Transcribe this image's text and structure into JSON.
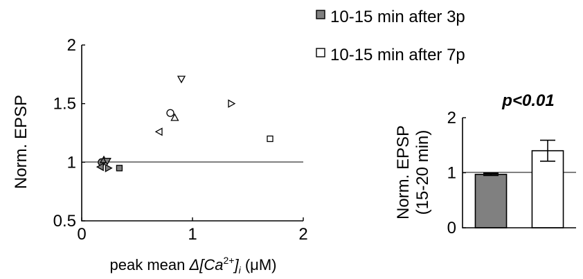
{
  "legend": {
    "items": [
      {
        "label": "10-15 min after 3p",
        "color": "#808080"
      },
      {
        "label": "10-15 min after 7p",
        "color": "#ffffff"
      }
    ]
  },
  "chart_data": [
    {
      "type": "scatter",
      "ylabel": "Norm. EPSP",
      "xlabel_parts": {
        "prefix": "peak mean ",
        "delta": "Δ",
        "main": "[Ca",
        "sup": "2+",
        "close": "]",
        "sub": "i",
        "unit": " (μM)"
      },
      "xlim": [
        0,
        2
      ],
      "ylim": [
        0.5,
        2
      ],
      "xticks": [
        0,
        1,
        2
      ],
      "xtick_labels": [
        "0",
        "1",
        "2"
      ],
      "yticks": [
        0.5,
        1,
        1.5,
        2
      ],
      "ytick_labels": [
        "0.5",
        "1",
        "1.5",
        "2"
      ],
      "reference_line_y": 1,
      "series": [
        {
          "color": "#808080",
          "points": [
            {
              "x": 0.18,
              "y": 1.0,
              "marker": "circle"
            },
            {
              "x": 0.2,
              "y": 1.02,
              "marker": "triangle-up"
            },
            {
              "x": 0.23,
              "y": 1.01,
              "marker": "triangle-down"
            },
            {
              "x": 0.17,
              "y": 0.96,
              "marker": "triangle-left"
            },
            {
              "x": 0.24,
              "y": 0.95,
              "marker": "triangle-right"
            },
            {
              "x": 0.34,
              "y": 0.95,
              "marker": "square"
            }
          ]
        },
        {
          "color": "#ffffff",
          "points": [
            {
              "x": 0.9,
              "y": 1.71,
              "marker": "triangle-down"
            },
            {
              "x": 1.35,
              "y": 1.5,
              "marker": "triangle-right"
            },
            {
              "x": 0.8,
              "y": 1.42,
              "marker": "circle"
            },
            {
              "x": 0.84,
              "y": 1.38,
              "marker": "triangle-up"
            },
            {
              "x": 0.7,
              "y": 1.26,
              "marker": "triangle-left"
            },
            {
              "x": 1.7,
              "y": 1.2,
              "marker": "square"
            }
          ]
        }
      ]
    },
    {
      "type": "bar",
      "title": "p<0.01",
      "ylabel_lines": [
        "Norm. EPSP",
        "(15-20 min)"
      ],
      "ylim": [
        0,
        2
      ],
      "yticks": [
        0,
        1,
        2
      ],
      "ytick_labels": [
        "0",
        "1",
        "2"
      ],
      "reference_line_y": 1,
      "bars": [
        {
          "value": 0.97,
          "error": 0.02,
          "color": "#808080"
        },
        {
          "value": 1.4,
          "error": 0.19,
          "color": "#ffffff"
        }
      ]
    }
  ]
}
